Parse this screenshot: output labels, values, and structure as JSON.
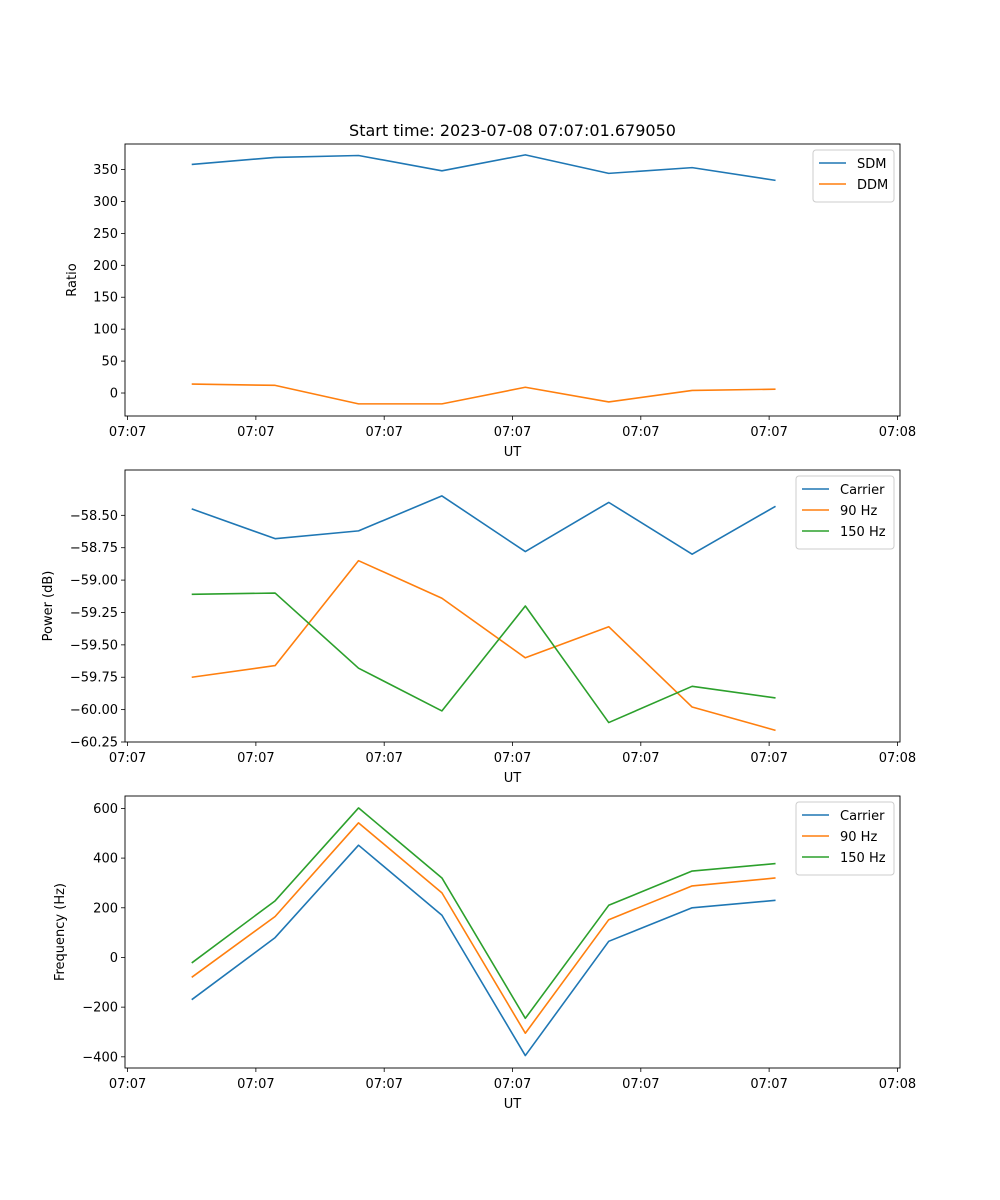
{
  "chart_data": {
    "title": "Start time: 2023-07-08 07:07:01.679050",
    "x_ticks": [
      "07:07",
      "07:07",
      "07:07",
      "07:07",
      "07:07",
      "07:07",
      "07:08"
    ],
    "x_tick_positions": [
      0,
      1,
      2,
      3,
      4,
      5,
      6
    ],
    "x_positions": [
      0.5,
      1.15,
      1.8,
      2.45,
      3.1,
      3.75,
      4.4,
      5.05
    ],
    "xlim": [
      -0.02,
      6.02
    ],
    "colors": {
      "blue": "#1f77b4",
      "orange": "#ff7f0e",
      "green": "#2ca02c"
    },
    "panels": [
      {
        "type": "line",
        "xlabel": "UT",
        "ylabel": "Ratio",
        "ylim": [
          -36,
          390
        ],
        "yticks": [
          0,
          50,
          100,
          150,
          200,
          250,
          300,
          350
        ],
        "ytick_labels": [
          "0",
          "50",
          "100",
          "150",
          "200",
          "250",
          "300",
          "350"
        ],
        "series": [
          {
            "name": "SDM",
            "color": "blue",
            "values": [
              358,
              369,
              372,
              348,
              373,
              344,
              353,
              333
            ]
          },
          {
            "name": "DDM",
            "color": "orange",
            "values": [
              14,
              12,
              -17,
              -17,
              9,
              -14,
              4,
              6
            ]
          }
        ]
      },
      {
        "type": "line",
        "xlabel": "UT",
        "ylabel": "Power (dB)",
        "ylim": [
          -60.25,
          -58.15
        ],
        "yticks": [
          -60.25,
          -60.0,
          -59.75,
          -59.5,
          -59.25,
          -59.0,
          -58.75,
          -58.5
        ],
        "ytick_labels": [
          "−60.25",
          "−60.00",
          "−59.75",
          "−59.50",
          "−59.25",
          "−59.00",
          "−58.75",
          "−58.50"
        ],
        "series": [
          {
            "name": "Carrier",
            "color": "blue",
            "values": [
              -58.45,
              -58.68,
              -58.62,
              -58.35,
              -58.78,
              -58.4,
              -58.8,
              -58.43
            ]
          },
          {
            "name": "90 Hz",
            "color": "orange",
            "values": [
              -59.75,
              -59.66,
              -58.85,
              -59.14,
              -59.6,
              -59.36,
              -59.98,
              -60.16
            ]
          },
          {
            "name": "150 Hz",
            "color": "green",
            "values": [
              -59.11,
              -59.1,
              -59.68,
              -60.01,
              -59.2,
              -60.1,
              -59.82,
              -59.91
            ]
          }
        ]
      },
      {
        "type": "line",
        "xlabel": "UT",
        "ylabel": "Frequency (Hz)",
        "ylim": [
          -445,
          650
        ],
        "yticks": [
          -400,
          -200,
          0,
          200,
          400,
          600
        ],
        "ytick_labels": [
          "−400",
          "−200",
          "0",
          "200",
          "400",
          "600"
        ],
        "series": [
          {
            "name": "Carrier",
            "color": "blue",
            "values": [
              -170,
              80,
              452,
              170,
              -395,
              65,
              200,
              230
            ]
          },
          {
            "name": "90 Hz",
            "color": "orange",
            "values": [
              -80,
              165,
              542,
              260,
              -305,
              152,
              288,
              320
            ]
          },
          {
            "name": "150 Hz",
            "color": "green",
            "values": [
              -22,
              228,
              602,
              320,
              -245,
              210,
              348,
              378
            ]
          }
        ]
      }
    ]
  }
}
